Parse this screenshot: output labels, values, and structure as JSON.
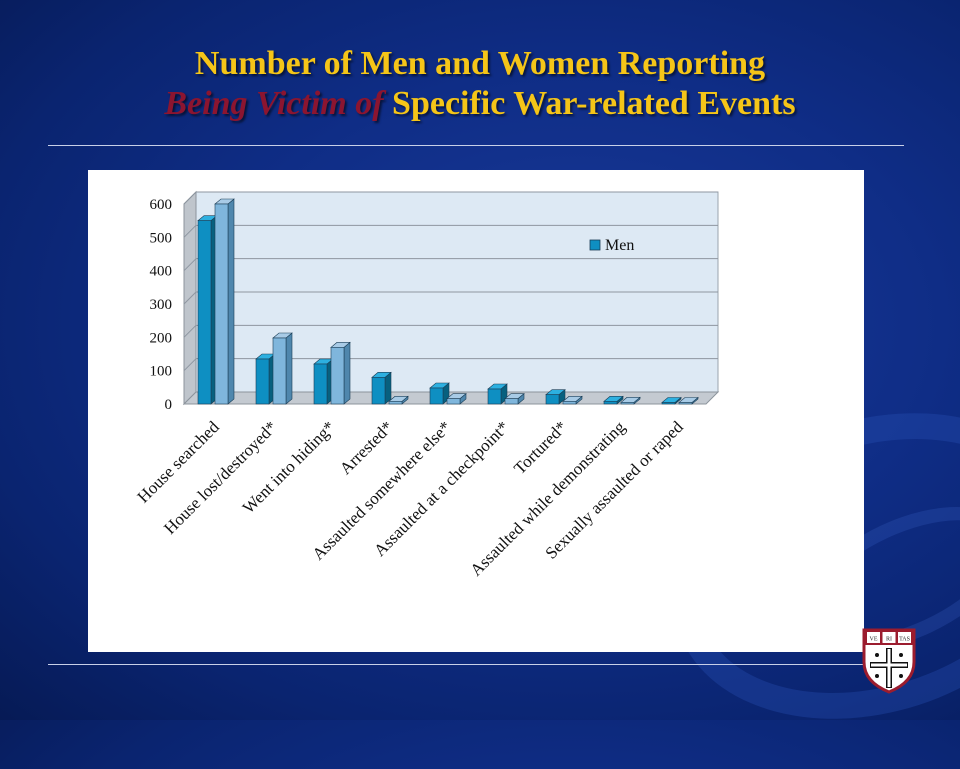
{
  "slide": {
    "title_line1": "Number of Men and Women Reporting",
    "title_em": "Being Victim of",
    "title_rest": "Specific War-related Events"
  },
  "logo": {
    "name": "shield-logo",
    "text": [
      "VE",
      "RI",
      "TAS"
    ]
  },
  "chart_data": {
    "type": "bar",
    "categories": [
      "House searched",
      "House lost/destroyed*",
      "Went into hiding*",
      "Arrested*",
      "Assaulted somewhere else*",
      "Assaulted at a checkpoint*",
      "Tortured*",
      "Assaulted while demonstrating",
      "Sexually assaulted or raped"
    ],
    "series": [
      {
        "name": "Men",
        "values": [
          550,
          135,
          120,
          80,
          48,
          45,
          28,
          8,
          3
        ],
        "color": "#0e8fc2"
      },
      {
        "values": [
          600,
          198,
          170,
          8,
          16,
          16,
          8,
          5,
          3
        ],
        "color": "#7fb6dc"
      }
    ],
    "ylim": [
      0,
      600
    ],
    "yticks": [
      0,
      100,
      200,
      300,
      400,
      500,
      600
    ],
    "grid": true,
    "legend": "top-right",
    "three_d": true
  }
}
